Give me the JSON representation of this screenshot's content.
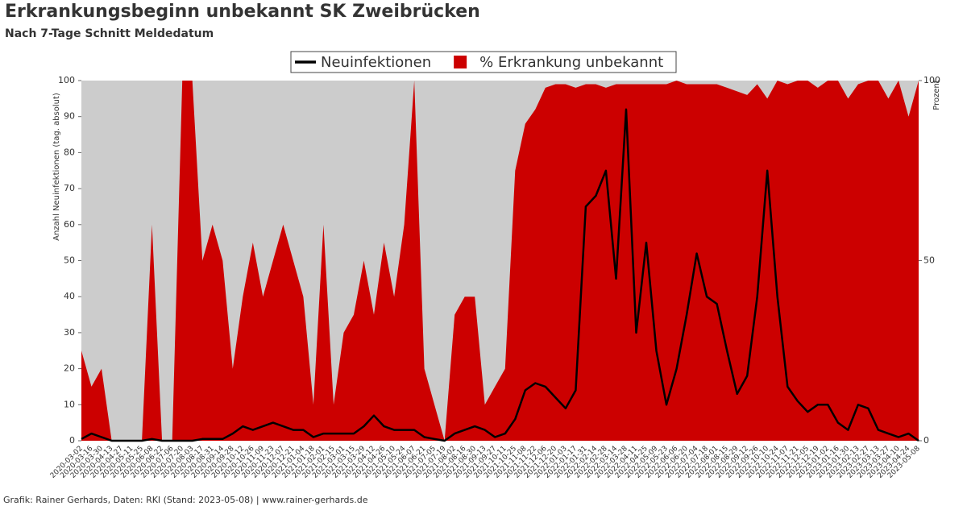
{
  "chart_data": {
    "type": "line",
    "title": "Erkrankungsbeginn unbekannt SK Zweibrücken",
    "subtitle": "Nach 7-Tage Schnitt Meldedatum",
    "ylabel": "Anzahl Neuinfektionen (tag. absolut)",
    "y2label": "Prozent",
    "footnote": "Grafik: Rainer Gerhards, Daten: RKI (Stand: 2023-05-08) | www.rainer-gerhards.de",
    "plot_background": "#cccccc",
    "grid": false,
    "legend": "top",
    "categories": [
      "2020-03-02",
      "2020-03-16",
      "2020-03-30",
      "2020-04-13",
      "2020-04-27",
      "2020-05-11",
      "2020-05-25",
      "2020-06-08",
      "2020-06-22",
      "2020-07-06",
      "2020-07-20",
      "2020-08-03",
      "2020-08-17",
      "2020-08-31",
      "2020-09-14",
      "2020-09-28",
      "2020-10-12",
      "2020-10-26",
      "2020-11-09",
      "2020-11-23",
      "2020-12-07",
      "2020-12-21",
      "2021-01-04",
      "2021-01-18",
      "2021-02-01",
      "2021-02-15",
      "2021-03-01",
      "2021-03-15",
      "2021-03-29",
      "2021-04-12",
      "2021-04-26",
      "2021-05-10",
      "2021-05-24",
      "2021-06-07",
      "2021-06-21",
      "2021-07-05",
      "2021-07-19",
      "2021-08-02",
      "2021-08-16",
      "2021-08-30",
      "2021-09-13",
      "2021-09-27",
      "2021-10-11",
      "2021-10-25",
      "2021-11-08",
      "2021-11-22",
      "2021-12-06",
      "2021-12-20",
      "2022-01-03",
      "2022-01-17",
      "2022-01-31",
      "2022-02-14",
      "2022-02-28",
      "2022-03-14",
      "2022-03-28",
      "2022-04-11",
      "2022-04-25",
      "2022-05-09",
      "2022-05-23",
      "2022-06-06",
      "2022-06-20",
      "2022-07-04",
      "2022-07-18",
      "2022-08-01",
      "2022-08-15",
      "2022-08-29",
      "2022-09-12",
      "2022-09-26",
      "2022-10-10",
      "2022-10-24",
      "2022-11-07",
      "2022-11-21",
      "2022-12-05",
      "2022-12-19",
      "2023-01-02",
      "2023-01-16",
      "2023-01-30",
      "2023-02-13",
      "2023-02-27",
      "2023-03-13",
      "2023-03-27",
      "2023-04-10",
      "2023-04-24",
      "2023-05-08"
    ],
    "series": [
      {
        "name": "% Erkrankung unbekannt",
        "type": "area",
        "axis": "y2",
        "color": "#cc0000",
        "values": [
          25,
          15,
          20,
          0,
          0,
          0,
          0,
          60,
          0,
          0,
          100,
          100,
          50,
          60,
          50,
          20,
          40,
          55,
          40,
          50,
          60,
          50,
          40,
          10,
          60,
          10,
          30,
          35,
          50,
          35,
          55,
          40,
          60,
          100,
          20,
          10,
          0,
          35,
          40,
          40,
          10,
          15,
          20,
          75,
          88,
          92,
          98,
          99,
          99,
          98,
          99,
          99,
          98,
          99,
          99,
          99,
          99,
          99,
          99,
          100,
          99,
          99,
          99,
          99,
          98,
          97,
          96,
          99,
          95,
          100,
          99,
          100,
          100,
          98,
          100,
          100,
          95,
          99,
          100,
          100,
          95,
          100,
          90,
          100
        ]
      },
      {
        "name": "Neuinfektionen",
        "type": "line",
        "color": "#000000",
        "values": [
          0.5,
          2,
          1,
          0,
          0,
          0,
          0,
          0.5,
          0,
          0,
          0,
          0,
          0.5,
          0.5,
          0.5,
          2,
          4,
          3,
          4,
          5,
          4,
          3,
          3,
          1,
          2,
          2,
          2,
          2,
          4,
          7,
          4,
          3,
          3,
          3,
          1,
          0.5,
          0,
          2,
          3,
          4,
          3,
          1,
          2,
          6,
          14,
          16,
          15,
          12,
          9,
          14,
          65,
          68,
          75,
          45,
          92,
          30,
          55,
          25,
          10,
          20,
          35,
          52,
          40,
          38,
          25,
          13,
          18,
          40,
          75,
          40,
          15,
          11,
          8,
          10,
          10,
          5,
          3,
          10,
          9,
          3,
          2,
          1,
          2,
          0
        ]
      }
    ],
    "ylim": [
      0,
      100
    ],
    "yticks": [
      0,
      10,
      20,
      30,
      40,
      50,
      60,
      70,
      80,
      90,
      100
    ],
    "y2lim": [
      0,
      100
    ],
    "y2ticks": [
      0,
      50,
      100
    ]
  }
}
